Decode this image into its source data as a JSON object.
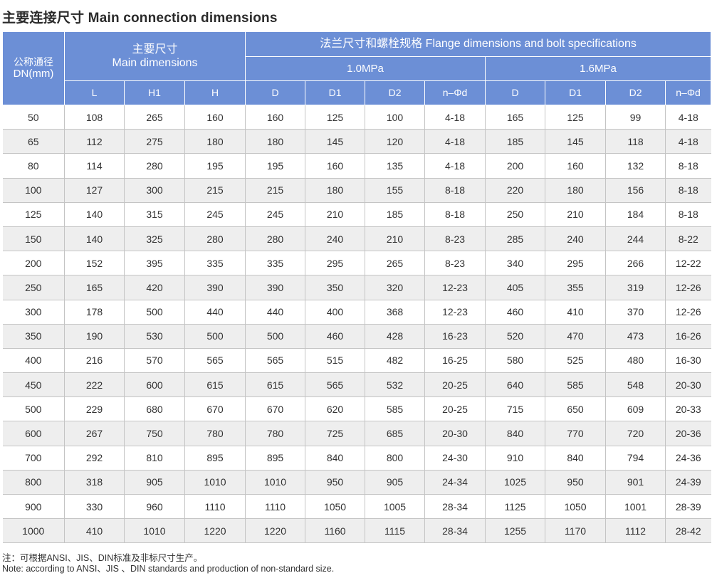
{
  "title": "主要连接尺寸 Main connection dimensions",
  "headers": {
    "dn_cn": "公称通径",
    "dn_en": "DN(mm)",
    "main_cn": "主要尺寸",
    "main_en": "Main dimensions",
    "flange": "法兰尺寸和螺栓规格 Flange dimensions and bolt specifications",
    "pn1": "1.0MPa",
    "pn2": "1.6MPa",
    "columns": [
      "L",
      "H1",
      "H",
      "D",
      "D1",
      "D2",
      "n–Φd",
      "D",
      "D1",
      "D2",
      "n–Φd"
    ]
  },
  "rows": [
    [
      "50",
      "108",
      "265",
      "160",
      "160",
      "125",
      "100",
      "4-18",
      "165",
      "125",
      "99",
      "4-18"
    ],
    [
      "65",
      "112",
      "275",
      "180",
      "180",
      "145",
      "120",
      "4-18",
      "185",
      "145",
      "118",
      "4-18"
    ],
    [
      "80",
      "114",
      "280",
      "195",
      "195",
      "160",
      "135",
      "4-18",
      "200",
      "160",
      "132",
      "8-18"
    ],
    [
      "100",
      "127",
      "300",
      "215",
      "215",
      "180",
      "155",
      "8-18",
      "220",
      "180",
      "156",
      "8-18"
    ],
    [
      "125",
      "140",
      "315",
      "245",
      "245",
      "210",
      "185",
      "8-18",
      "250",
      "210",
      "184",
      "8-18"
    ],
    [
      "150",
      "140",
      "325",
      "280",
      "280",
      "240",
      "210",
      "8-23",
      "285",
      "240",
      "244",
      "8-22"
    ],
    [
      "200",
      "152",
      "395",
      "335",
      "335",
      "295",
      "265",
      "8-23",
      "340",
      "295",
      "266",
      "12-22"
    ],
    [
      "250",
      "165",
      "420",
      "390",
      "390",
      "350",
      "320",
      "12-23",
      "405",
      "355",
      "319",
      "12-26"
    ],
    [
      "300",
      "178",
      "500",
      "440",
      "440",
      "400",
      "368",
      "12-23",
      "460",
      "410",
      "370",
      "12-26"
    ],
    [
      "350",
      "190",
      "530",
      "500",
      "500",
      "460",
      "428",
      "16-23",
      "520",
      "470",
      "473",
      "16-26"
    ],
    [
      "400",
      "216",
      "570",
      "565",
      "565",
      "515",
      "482",
      "16-25",
      "580",
      "525",
      "480",
      "16-30"
    ],
    [
      "450",
      "222",
      "600",
      "615",
      "615",
      "565",
      "532",
      "20-25",
      "640",
      "585",
      "548",
      "20-30"
    ],
    [
      "500",
      "229",
      "680",
      "670",
      "670",
      "620",
      "585",
      "20-25",
      "715",
      "650",
      "609",
      "20-33"
    ],
    [
      "600",
      "267",
      "750",
      "780",
      "780",
      "725",
      "685",
      "20-30",
      "840",
      "770",
      "720",
      "20-36"
    ],
    [
      "700",
      "292",
      "810",
      "895",
      "895",
      "840",
      "800",
      "24-30",
      "910",
      "840",
      "794",
      "24-36"
    ],
    [
      "800",
      "318",
      "905",
      "1010",
      "1010",
      "950",
      "905",
      "24-34",
      "1025",
      "950",
      "901",
      "24-39"
    ],
    [
      "900",
      "330",
      "960",
      "1110",
      "1110",
      "1050",
      "1005",
      "28-34",
      "1125",
      "1050",
      "1001",
      "28-39"
    ],
    [
      "1000",
      "410",
      "1010",
      "1220",
      "1220",
      "1160",
      "1115",
      "28-34",
      "1255",
      "1170",
      "1112",
      "28-42"
    ]
  ],
  "notes": {
    "cn": "注：可根据ANSI、JIS、DIN标准及非标尺寸生产。",
    "en": "Note: according to ANSI、JIS 、DIN standards and production of non-standard size."
  },
  "colors": {
    "header_bg": "#6c8fd6",
    "stripe_bg": "#eeeeee",
    "grid_line": "#c4c4c4"
  }
}
